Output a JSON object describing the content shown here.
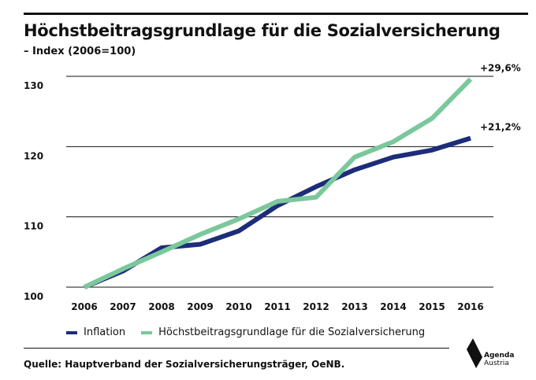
{
  "header": {
    "title": "Höchstbeitragsgrundlage für die Sozialversicherung",
    "subtitle": "– Index (2006=100)"
  },
  "chart_data": {
    "type": "line",
    "categories": [
      "2006",
      "2007",
      "2008",
      "2009",
      "2010",
      "2011",
      "2012",
      "2013",
      "2014",
      "2015",
      "2016"
    ],
    "series": [
      {
        "name": "Inflation",
        "color": "#1d2d7a",
        "values": [
          100,
          102.3,
          105.6,
          106.1,
          108,
          111.6,
          114.3,
          116.7,
          118.5,
          119.5,
          121.2
        ],
        "end_label": "+21,2%"
      },
      {
        "name": "Höchstbeitragsgrundlage für die Sozialversicherung",
        "color": "#7ac89b",
        "values": [
          100,
          102.6,
          105,
          107.5,
          109.7,
          112.2,
          112.8,
          118.5,
          120.7,
          124,
          129.6
        ],
        "end_label": "+29,6%"
      }
    ],
    "yticks": [
      "100",
      "110",
      "120",
      "130"
    ],
    "ylim": [
      100,
      130
    ],
    "grid": true,
    "legend": "bottom-left"
  },
  "footer": {
    "source": "Quelle: Hauptverband der Sozialversicherungsträger, OeNB."
  },
  "logo": {
    "line1": "Agenda",
    "line2": "Austria"
  }
}
